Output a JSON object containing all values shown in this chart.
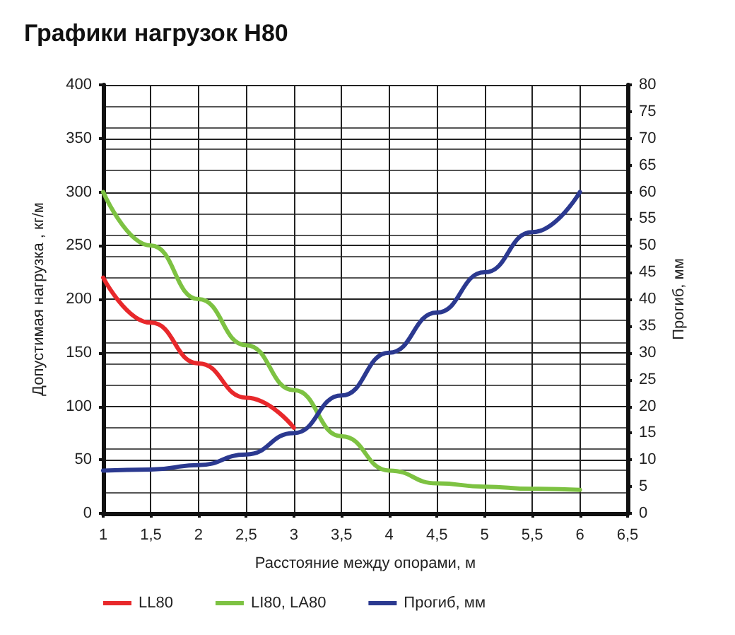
{
  "chart_data": {
    "type": "line",
    "title": "Графики нагрузок H80",
    "xlabel": "Расстояние между опорами, м",
    "ylabel": "Допустимая нагрузка , кг/м",
    "y2label": "Прогиб, мм",
    "xlim": [
      1,
      6.5
    ],
    "xticks": [
      {
        "value": 1,
        "label": "1"
      },
      {
        "value": 1.5,
        "label": "1,5"
      },
      {
        "value": 2,
        "label": "2"
      },
      {
        "value": 2.5,
        "label": "2,5"
      },
      {
        "value": 3,
        "label": "3"
      },
      {
        "value": 3.5,
        "label": "3,5"
      },
      {
        "value": 4,
        "label": "4"
      },
      {
        "value": 4.5,
        "label": "4,5"
      },
      {
        "value": 5,
        "label": "5"
      },
      {
        "value": 5.5,
        "label": "5,5"
      },
      {
        "value": 6,
        "label": "6"
      },
      {
        "value": 6.5,
        "label": "6,5"
      }
    ],
    "ylim": [
      0,
      400
    ],
    "yticks": [
      0,
      50,
      100,
      150,
      200,
      250,
      300,
      350,
      400
    ],
    "y2lim": [
      0,
      80
    ],
    "y2ticks": [
      0,
      5,
      10,
      15,
      20,
      25,
      30,
      35,
      40,
      45,
      50,
      55,
      60,
      65,
      70,
      75,
      80
    ],
    "grid": true,
    "legend": "bottom",
    "marker": "none",
    "series": [
      {
        "name": "LL80",
        "color": "#e8282b",
        "x": [
          1,
          1.5,
          2,
          2.5,
          3
        ],
        "values": [
          220,
          178,
          140,
          108,
          80
        ]
      },
      {
        "name": "LI80, LA80",
        "color": "#7dc242",
        "x": [
          1,
          1.5,
          2,
          2.5,
          3,
          3.5,
          4,
          4.5,
          5,
          5.5,
          6
        ],
        "values": [
          300,
          250,
          200,
          157,
          115,
          72,
          40,
          28,
          25,
          23,
          22
        ]
      },
      {
        "name": "Прогиб, мм",
        "color": "#2b3990",
        "axis": "y2",
        "x": [
          1,
          1.5,
          2,
          2.5,
          3,
          3.5,
          4,
          4.5,
          5,
          5.5,
          6
        ],
        "values": [
          8,
          8.2,
          9,
          11,
          15,
          22,
          30,
          37.5,
          45,
          52.5,
          60
        ]
      }
    ]
  }
}
